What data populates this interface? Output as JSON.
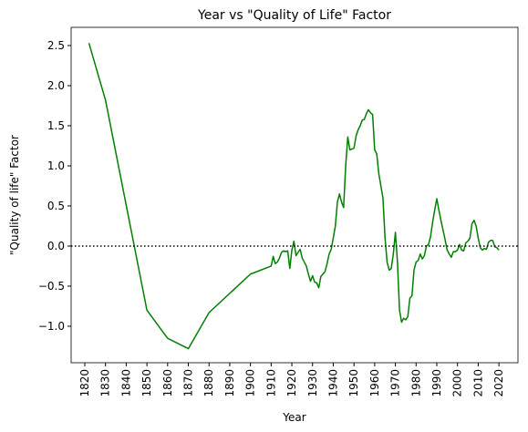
{
  "chart_data": {
    "type": "line",
    "title": "Year vs \"Quality of Life\" Factor",
    "x_label": "Year",
    "y_label": "\"Quality of life\" Factor",
    "x": [
      1822,
      1830,
      1850,
      1860,
      1870,
      1880,
      1900,
      1910,
      1911,
      1912,
      1913,
      1914,
      1915,
      1916,
      1917,
      1918,
      1919,
      1920,
      1921,
      1922,
      1923,
      1924,
      1925,
      1926,
      1927,
      1928,
      1929,
      1930,
      1931,
      1932,
      1933,
      1934,
      1935,
      1936,
      1937,
      1938,
      1939,
      1940,
      1941,
      1942,
      1943,
      1944,
      1945,
      1946,
      1947,
      1948,
      1949,
      1950,
      1951,
      1952,
      1953,
      1954,
      1955,
      1956,
      1957,
      1958,
      1959,
      1960,
      1961,
      1962,
      1963,
      1964,
      1965,
      1966,
      1967,
      1968,
      1969,
      1970,
      1971,
      1972,
      1973,
      1974,
      1975,
      1976,
      1977,
      1978,
      1979,
      1980,
      1981,
      1982,
      1983,
      1984,
      1985,
      1986,
      1987,
      1988,
      1989,
      1990,
      1991,
      1992,
      1993,
      1994,
      1995,
      1996,
      1997,
      1998,
      1999,
      2000,
      2001,
      2002,
      2003,
      2004,
      2005,
      2006,
      2007,
      2008,
      2009,
      2010,
      2011,
      2012,
      2013,
      2014,
      2015,
      2016,
      2017,
      2018,
      2019,
      2020
    ],
    "series": [
      {
        "color": "#008000",
        "values": [
          2.53,
          1.82,
          -0.8,
          -1.15,
          -1.28,
          -0.83,
          -0.35,
          -0.25,
          -0.13,
          -0.22,
          -0.2,
          -0.15,
          -0.08,
          -0.06,
          -0.07,
          -0.06,
          -0.28,
          -0.05,
          0.06,
          -0.12,
          -0.08,
          -0.04,
          -0.15,
          -0.2,
          -0.25,
          -0.35,
          -0.44,
          -0.37,
          -0.45,
          -0.46,
          -0.52,
          -0.38,
          -0.35,
          -0.32,
          -0.22,
          -0.1,
          -0.04,
          0.1,
          0.25,
          0.55,
          0.65,
          0.55,
          0.48,
          1.0,
          1.36,
          1.2,
          1.21,
          1.22,
          1.37,
          1.45,
          1.5,
          1.57,
          1.58,
          1.65,
          1.7,
          1.66,
          1.64,
          1.2,
          1.15,
          0.9,
          0.75,
          0.6,
          0.1,
          -0.2,
          -0.3,
          -0.28,
          -0.1,
          0.17,
          -0.2,
          -0.8,
          -0.95,
          -0.9,
          -0.92,
          -0.88,
          -0.65,
          -0.62,
          -0.3,
          -0.2,
          -0.18,
          -0.1,
          -0.16,
          -0.12,
          0.0,
          0.02,
          0.12,
          0.3,
          0.45,
          0.59,
          0.45,
          0.32,
          0.2,
          0.08,
          -0.05,
          -0.1,
          -0.14,
          -0.07,
          -0.07,
          -0.05,
          0.02,
          -0.05,
          -0.06,
          0.04,
          0.06,
          0.1,
          0.28,
          0.32,
          0.25,
          0.1,
          -0.02,
          -0.05,
          -0.03,
          -0.04,
          0.05,
          0.07,
          0.07,
          -0.01,
          -0.02,
          -0.05
        ]
      }
    ],
    "reference_line": {
      "value": 0,
      "color": "#000000",
      "style": "dotted"
    },
    "xlim": [
      1813.4,
      2029.2
    ],
    "xticks": [
      1820,
      1830,
      1840,
      1850,
      1860,
      1870,
      1880,
      1890,
      1900,
      1910,
      1920,
      1930,
      1940,
      1950,
      1960,
      1970,
      1980,
      1990,
      2000,
      2010,
      2020
    ],
    "ylim": [
      -1.455,
      2.727
    ],
    "yticks": [
      {
        "value": -1,
        "label": "−1.0"
      },
      {
        "value": -0.5,
        "label": "−0.5"
      },
      {
        "value": 0,
        "label": "0.0"
      },
      0.5,
      {
        "value": 1,
        "label": "1.0"
      },
      1.5,
      {
        "value": 2,
        "label": "2.0"
      },
      2.5
    ],
    "grid": false
  }
}
